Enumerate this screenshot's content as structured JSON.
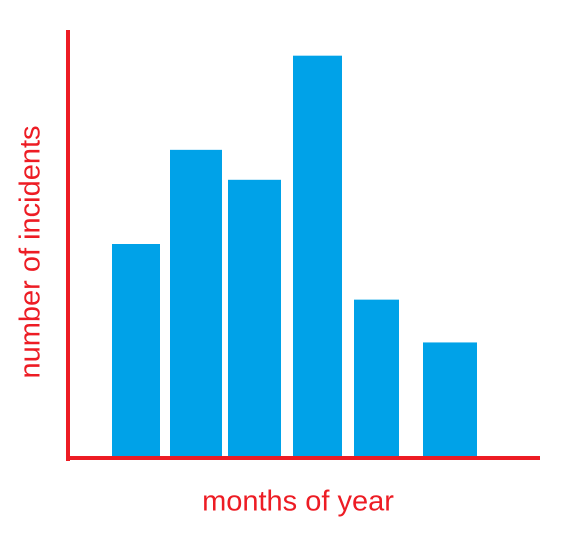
{
  "chart_data": {
    "type": "bar",
    "xlabel": "months of year",
    "ylabel": "number of incidents",
    "categories": [
      null,
      null,
      null,
      null,
      null,
      null
    ],
    "values": [
      50,
      72,
      65,
      94,
      37,
      27
    ],
    "color": "#00a2e8",
    "axis_color": "#ed1c24",
    "ylim": [
      0,
      100
    ]
  }
}
